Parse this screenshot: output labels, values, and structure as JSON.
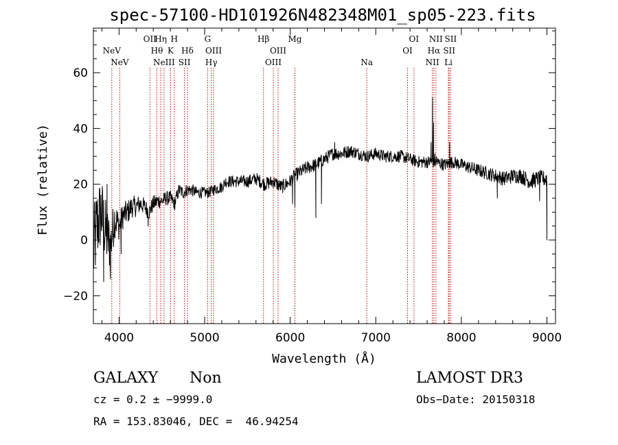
{
  "chart_data": {
    "type": "line",
    "title": "spec-57100-HD101926N482348M01_sp05-223.fits",
    "xlabel": "Wavelength (Å)",
    "ylabel": "Flux (relative)",
    "xlim": [
      3700,
      9100
    ],
    "ylim": [
      -30,
      76
    ],
    "x_ticks": [
      4000,
      5000,
      6000,
      7000,
      8000,
      9000
    ],
    "y_ticks": [
      -20,
      0,
      20,
      40,
      60
    ],
    "anchors": [
      [
        3700,
        -5
      ],
      [
        3740,
        5
      ],
      [
        3790,
        10
      ],
      [
        3850,
        2
      ],
      [
        3900,
        -2
      ],
      [
        3950,
        8
      ],
      [
        4000,
        5
      ],
      [
        4050,
        9
      ],
      [
        4100,
        10
      ],
      [
        4150,
        12
      ],
      [
        4200,
        12
      ],
      [
        4250,
        13
      ],
      [
        4300,
        12
      ],
      [
        4350,
        10
      ],
      [
        4400,
        13
      ],
      [
        4450,
        14
      ],
      [
        4500,
        14
      ],
      [
        4550,
        15
      ],
      [
        4600,
        15
      ],
      [
        4650,
        13
      ],
      [
        4700,
        18
      ],
      [
        4750,
        17
      ],
      [
        4800,
        18
      ],
      [
        4850,
        18
      ],
      [
        4900,
        17
      ],
      [
        5000,
        17
      ],
      [
        5050,
        17
      ],
      [
        5100,
        18
      ],
      [
        5200,
        19
      ],
      [
        5250,
        21
      ],
      [
        5300,
        21
      ],
      [
        5400,
        21
      ],
      [
        5500,
        21
      ],
      [
        5600,
        22
      ],
      [
        5700,
        20
      ],
      [
        5800,
        21
      ],
      [
        5850,
        20
      ],
      [
        5900,
        19
      ],
      [
        5950,
        20
      ],
      [
        6000,
        21
      ],
      [
        6050,
        23
      ],
      [
        6100,
        24
      ],
      [
        6200,
        26
      ],
      [
        6300,
        27
      ],
      [
        6400,
        29
      ],
      [
        6500,
        31
      ],
      [
        6600,
        31
      ],
      [
        6700,
        32
      ],
      [
        6800,
        31
      ],
      [
        6900,
        30
      ],
      [
        7000,
        31
      ],
      [
        7100,
        30
      ],
      [
        7200,
        30
      ],
      [
        7300,
        30
      ],
      [
        7400,
        29
      ],
      [
        7500,
        28
      ],
      [
        7600,
        28
      ],
      [
        7700,
        28
      ],
      [
        7800,
        27
      ],
      [
        7900,
        28
      ],
      [
        8000,
        27
      ],
      [
        8100,
        26
      ],
      [
        8200,
        25
      ],
      [
        8300,
        24
      ],
      [
        8400,
        23
      ],
      [
        8500,
        22
      ],
      [
        8600,
        23
      ],
      [
        8700,
        23
      ],
      [
        8800,
        21
      ],
      [
        8900,
        22
      ],
      [
        9000,
        22
      ]
    ],
    "features": [
      {
        "x": 3820,
        "y": -15
      },
      {
        "x": 3860,
        "y": 20
      },
      {
        "x": 3900,
        "y": -14
      },
      {
        "x": 4024,
        "y": -5
      },
      {
        "x": 4340,
        "y": 5
      },
      {
        "x": 6028,
        "y": 13
      },
      {
        "x": 6055,
        "y": 12
      },
      {
        "x": 6230,
        "y": 26
      },
      {
        "x": 6300,
        "y": 8
      },
      {
        "x": 6365,
        "y": 13
      },
      {
        "x": 6520,
        "y": 35
      },
      {
        "x": 7646,
        "y": 35
      },
      {
        "x": 7662,
        "y": 51
      },
      {
        "x": 7676,
        "y": 42
      },
      {
        "x": 7690,
        "y": 31
      },
      {
        "x": 7710,
        "y": 30
      },
      {
        "x": 7863,
        "y": 35
      },
      {
        "x": 8420,
        "y": 15
      },
      {
        "x": 8915,
        "y": 14
      },
      {
        "x": 9000,
        "y": 0
      }
    ],
    "noise_envelope": [
      [
        3700,
        16
      ],
      [
        3850,
        12
      ],
      [
        4000,
        5
      ],
      [
        4300,
        3
      ],
      [
        5000,
        2
      ],
      [
        6000,
        2.5
      ],
      [
        7000,
        2.2
      ],
      [
        8000,
        2.2
      ],
      [
        9000,
        3
      ]
    ],
    "spectral_lines": [
      {
        "x": 3346,
        "label": "NeV",
        "tier": 1
      },
      {
        "x": 3426,
        "label": "NeV",
        "tier": 2
      },
      {
        "x": 3727,
        "label": "OII",
        "tier": 0
      },
      {
        "x": 3797,
        "label": "Hθ",
        "tier": 1
      },
      {
        "x": 3835,
        "label": "Hη",
        "tier": 0
      },
      {
        "x": 3868,
        "label": "NeIII",
        "tier": 2
      },
      {
        "x": 3934,
        "label": "K",
        "tier": 1
      },
      {
        "x": 3970,
        "label": "H",
        "tier": 0
      },
      {
        "x": 4072,
        "label": "SII",
        "tier": 2
      },
      {
        "x": 4102,
        "label": "Hδ",
        "tier": 1
      },
      {
        "x": 4304,
        "label": "G",
        "tier": 0
      },
      {
        "x": 4340,
        "label": "Hγ",
        "tier": 2
      },
      {
        "x": 4363,
        "label": "OIII",
        "tier": 1
      },
      {
        "x": 4861,
        "label": "Hβ",
        "tier": 0
      },
      {
        "x": 4959,
        "label": "OIII",
        "tier": 2
      },
      {
        "x": 5007,
        "label": "OIII",
        "tier": 1
      },
      {
        "x": 5175,
        "label": "Mg",
        "tier": 0
      },
      {
        "x": 5893,
        "label": "Na",
        "tier": 2
      },
      {
        "x": 6300,
        "label": "OI",
        "tier": 1
      },
      {
        "x": 6364,
        "label": "OI",
        "tier": 0
      },
      {
        "x": 6548,
        "label": "NII",
        "tier": 2
      },
      {
        "x": 6563,
        "label": "Hα",
        "tier": 1
      },
      {
        "x": 6583,
        "label": "NII",
        "tier": 0
      },
      {
        "x": 6708,
        "label": "Li",
        "tier": 2
      },
      {
        "x": 6716,
        "label": "SII",
        "tier": 1
      },
      {
        "x": 6731,
        "label": "SII",
        "tier": 0
      }
    ],
    "marker_redshift": 0.17,
    "line_color": "#000000",
    "marker_color": "#c00000"
  },
  "info": {
    "class": "GALAXY",
    "subclass": "Non",
    "cz": "cz = 0.2 ± −9999.0",
    "radec": "RA = 153.83046, DEC =  46.94254",
    "survey": "LAMOST DR3",
    "obsdate": "Obs−Date: 20150318"
  }
}
